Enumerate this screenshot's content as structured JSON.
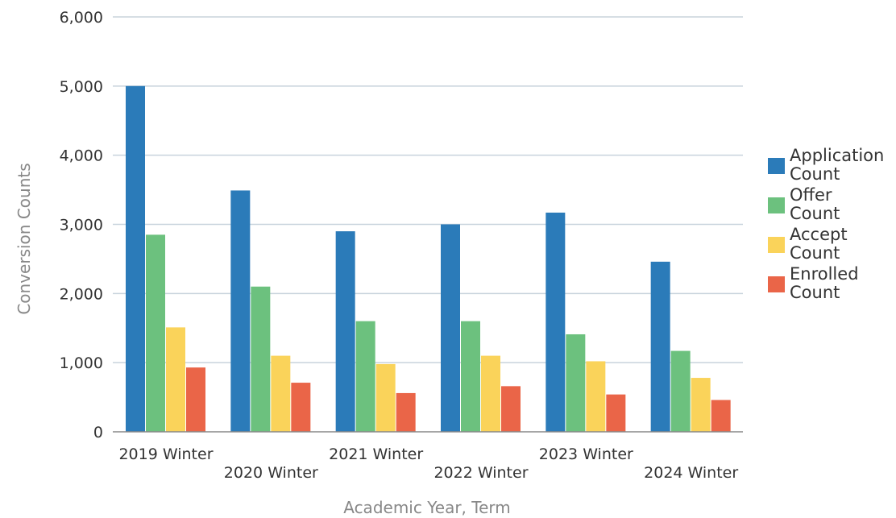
{
  "chart_data": {
    "type": "bar",
    "title": "",
    "xlabel": "Academic Year, Term",
    "ylabel": "Conversion Counts",
    "ylim": [
      0,
      6000
    ],
    "yticks": [
      0,
      1000,
      2000,
      3000,
      4000,
      5000,
      6000
    ],
    "ytick_labels": [
      "0",
      "1,000",
      "2,000",
      "3,000",
      "4,000",
      "5,000",
      "6,000"
    ],
    "grid": true,
    "legend_position": "right",
    "categories": [
      "2019 Winter",
      "2020 Winter",
      "2021 Winter",
      "2022 Winter",
      "2023 Winter",
      "2024 Winter"
    ],
    "series": [
      {
        "name": "Application Count",
        "name_lines": [
          "Application",
          "Count"
        ],
        "color": "#2b7bb9",
        "values": [
          5000,
          3490,
          2900,
          3000,
          3170,
          2460
        ]
      },
      {
        "name": "Offer Count",
        "name_lines": [
          "Offer",
          "Count"
        ],
        "color": "#6cc17e",
        "values": [
          2850,
          2100,
          1600,
          1600,
          1410,
          1170
        ]
      },
      {
        "name": "Accept Count",
        "name_lines": [
          "Accept",
          "Count"
        ],
        "color": "#fad35a",
        "values": [
          1510,
          1100,
          980,
          1100,
          1020,
          780
        ]
      },
      {
        "name": "Enrolled Count",
        "name_lines": [
          "Enrolled",
          "Count"
        ],
        "color": "#ea6548",
        "values": [
          930,
          710,
          560,
          660,
          540,
          460
        ]
      }
    ]
  }
}
